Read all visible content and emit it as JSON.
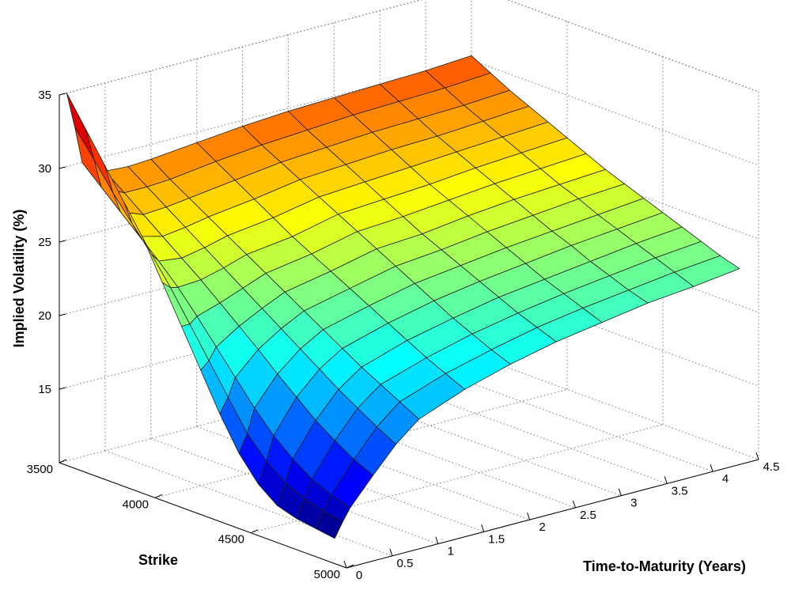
{
  "chart_data": {
    "type": "surface",
    "title": "",
    "xlabel": "Time-to-Maturity (Years)",
    "ylabel": "Strike",
    "zlabel": "Implied Volatility (%)",
    "xlim": [
      0,
      4.5
    ],
    "ylim": [
      3500,
      5000
    ],
    "zlim": [
      10,
      35
    ],
    "x_ticks": [
      0,
      0.5,
      1,
      1.5,
      2,
      2.5,
      3,
      3.5,
      4,
      4.5
    ],
    "x_tick_labels": [
      "0",
      "0.5",
      "1",
      "1.5",
      "2",
      "2.5",
      "3",
      "3.5",
      "4",
      "4.5"
    ],
    "y_ticks": [
      3500,
      4000,
      4500,
      5000
    ],
    "y_tick_labels": [
      "3500",
      "4000",
      "4500",
      "5000"
    ],
    "z_ticks": [
      15,
      20,
      25,
      30,
      35
    ],
    "z_tick_labels": [
      "15",
      "20",
      "25",
      "30",
      "35"
    ],
    "colormap": [
      "#00008f",
      "#0000ff",
      "#00ffff",
      "#ffff00",
      "#ff0000",
      "#800000"
    ],
    "grid": true,
    "maturities": [
      0.08,
      0.17,
      0.25,
      0.5,
      0.75,
      1.0,
      1.5,
      2.0,
      2.5,
      3.0,
      3.5,
      4.0,
      4.5
    ],
    "strikes": [
      3500,
      3600,
      3700,
      3800,
      3900,
      4000,
      4100,
      4200,
      4300,
      4400,
      4500,
      4600,
      4700,
      4800,
      4900
    ],
    "implied_vol_by_maturity": [
      [
        35.0,
        33.0,
        31.0,
        29.0,
        27.0,
        24.5,
        22.0,
        19.5,
        17.0,
        14.8,
        13.2,
        12.2,
        11.8,
        11.6,
        11.4
      ],
      [
        32.5,
        30.8,
        29.0,
        27.4,
        25.8,
        24.0,
        22.0,
        20.0,
        18.0,
        16.0,
        14.6,
        13.6,
        13.0,
        12.6,
        12.4
      ],
      [
        30.0,
        28.8,
        27.6,
        26.4,
        25.2,
        23.9,
        22.4,
        20.8,
        19.2,
        17.6,
        16.2,
        15.1,
        14.2,
        13.6,
        13.2
      ],
      [
        29.0,
        28.0,
        27.0,
        26.0,
        25.0,
        24.0,
        22.9,
        21.8,
        20.7,
        19.5,
        18.4,
        17.3,
        16.4,
        15.6,
        15.0
      ],
      [
        28.9,
        28.0,
        27.1,
        26.2,
        25.3,
        24.4,
        23.5,
        22.6,
        21.7,
        20.8,
        19.9,
        19.0,
        18.2,
        17.4,
        16.7
      ],
      [
        29.0,
        28.1,
        27.3,
        26.5,
        25.7,
        24.9,
        24.1,
        23.3,
        22.5,
        21.7,
        20.9,
        20.1,
        19.4,
        18.7,
        18.0
      ],
      [
        29.3,
        28.5,
        27.7,
        26.9,
        26.1,
        25.3,
        24.6,
        23.9,
        23.2,
        22.5,
        21.8,
        21.1,
        20.4,
        19.8,
        19.2
      ],
      [
        29.6,
        28.8,
        28.1,
        27.4,
        26.7,
        26.0,
        25.3,
        24.6,
        23.9,
        23.2,
        22.5,
        21.8,
        21.2,
        20.6,
        20.1
      ],
      [
        29.8,
        29.0,
        28.3,
        27.6,
        26.9,
        26.2,
        25.5,
        24.8,
        24.2,
        23.6,
        23.0,
        22.4,
        21.8,
        21.3,
        20.8
      ],
      [
        29.9,
        29.2,
        28.5,
        27.8,
        27.1,
        26.4,
        25.8,
        25.2,
        24.6,
        24.0,
        23.4,
        22.8,
        22.3,
        21.8,
        21.3
      ],
      [
        30.0,
        29.3,
        28.6,
        27.9,
        27.3,
        26.7,
        26.1,
        25.5,
        24.9,
        24.3,
        23.8,
        23.2,
        22.7,
        22.2,
        21.8
      ],
      [
        30.1,
        29.4,
        28.7,
        28.1,
        27.5,
        26.9,
        26.3,
        25.7,
        25.2,
        24.6,
        24.1,
        23.6,
        23.1,
        22.6,
        22.1
      ],
      [
        30.3,
        29.6,
        28.9,
        28.3,
        27.7,
        27.1,
        26.5,
        25.9,
        25.4,
        24.9,
        24.4,
        23.9,
        23.4,
        22.9,
        22.5
      ]
    ]
  }
}
